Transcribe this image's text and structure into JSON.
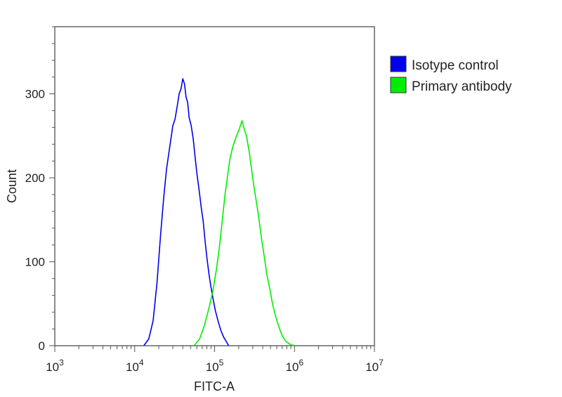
{
  "chart_data": {
    "type": "line",
    "xlabel": "FITC-A",
    "ylabel": "Count",
    "x_scale": "log",
    "xlim": [
      1000,
      10000000
    ],
    "ylim": [
      0,
      380
    ],
    "x_ticks": [
      {
        "value": 1000,
        "base": "10",
        "exp": "3"
      },
      {
        "value": 10000,
        "base": "10",
        "exp": "4"
      },
      {
        "value": 100000,
        "base": "10",
        "exp": "5"
      },
      {
        "value": 1000000,
        "base": "10",
        "exp": "6"
      },
      {
        "value": 10000000,
        "base": "10",
        "exp": "7"
      }
    ],
    "y_ticks": [
      0,
      100,
      200,
      300
    ],
    "grid": false,
    "legend_position": "right",
    "series": [
      {
        "name": "Isotype control",
        "color": "#0000ee",
        "points": [
          [
            13000,
            0
          ],
          [
            15000,
            8
          ],
          [
            17000,
            30
          ],
          [
            19000,
            75
          ],
          [
            21000,
            130
          ],
          [
            23000,
            175
          ],
          [
            25000,
            210
          ],
          [
            27000,
            232
          ],
          [
            30000,
            262
          ],
          [
            32000,
            270
          ],
          [
            34000,
            285
          ],
          [
            36000,
            300
          ],
          [
            38000,
            306
          ],
          [
            40000,
            318
          ],
          [
            42000,
            312
          ],
          [
            44000,
            296
          ],
          [
            46000,
            290
          ],
          [
            48000,
            272
          ],
          [
            51000,
            262
          ],
          [
            54000,
            246
          ],
          [
            57000,
            225
          ],
          [
            60000,
            205
          ],
          [
            64000,
            185
          ],
          [
            68000,
            165
          ],
          [
            72000,
            148
          ],
          [
            76000,
            125
          ],
          [
            80000,
            105
          ],
          [
            85000,
            85
          ],
          [
            90000,
            70
          ],
          [
            96000,
            55
          ],
          [
            102000,
            42
          ],
          [
            110000,
            30
          ],
          [
            120000,
            18
          ],
          [
            130000,
            10
          ],
          [
            140000,
            5
          ],
          [
            150000,
            0
          ]
        ]
      },
      {
        "name": "Primary antibody",
        "color": "#00ee00",
        "points": [
          [
            55000,
            0
          ],
          [
            65000,
            8
          ],
          [
            75000,
            25
          ],
          [
            85000,
            45
          ],
          [
            95000,
            65
          ],
          [
            105000,
            90
          ],
          [
            115000,
            118
          ],
          [
            125000,
            150
          ],
          [
            135000,
            180
          ],
          [
            145000,
            202
          ],
          [
            155000,
            222
          ],
          [
            170000,
            238
          ],
          [
            185000,
            248
          ],
          [
            200000,
            256
          ],
          [
            210000,
            262
          ],
          [
            220000,
            268
          ],
          [
            235000,
            258
          ],
          [
            250000,
            250
          ],
          [
            270000,
            232
          ],
          [
            290000,
            210
          ],
          [
            310000,
            190
          ],
          [
            335000,
            170
          ],
          [
            360000,
            150
          ],
          [
            390000,
            125
          ],
          [
            420000,
            105
          ],
          [
            450000,
            85
          ],
          [
            490000,
            68
          ],
          [
            530000,
            50
          ],
          [
            580000,
            35
          ],
          [
            640000,
            22
          ],
          [
            700000,
            12
          ],
          [
            780000,
            5
          ],
          [
            900000,
            1
          ],
          [
            1000000,
            0
          ]
        ]
      }
    ]
  }
}
